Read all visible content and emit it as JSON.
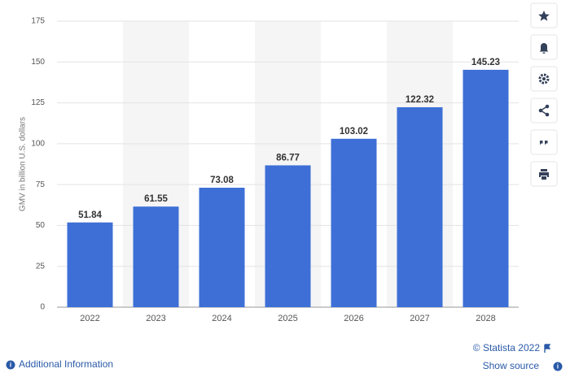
{
  "chart_data": {
    "type": "bar",
    "y_label": "GMV in billion U.S. dollars",
    "categories": [
      "2022",
      "2023",
      "2024",
      "2025",
      "2026",
      "2027",
      "2028"
    ],
    "values": [
      51.84,
      61.55,
      73.08,
      86.77,
      103.02,
      122.32,
      145.23
    ],
    "color": "#3d6fd6",
    "ylim": [
      0,
      175
    ],
    "yticks": [
      0,
      25,
      50,
      75,
      100,
      125,
      150,
      175
    ],
    "grid": true
  },
  "footer": {
    "copyright": "© Statista 2022",
    "additional_info": "Additional Information",
    "show_source": "Show source"
  }
}
